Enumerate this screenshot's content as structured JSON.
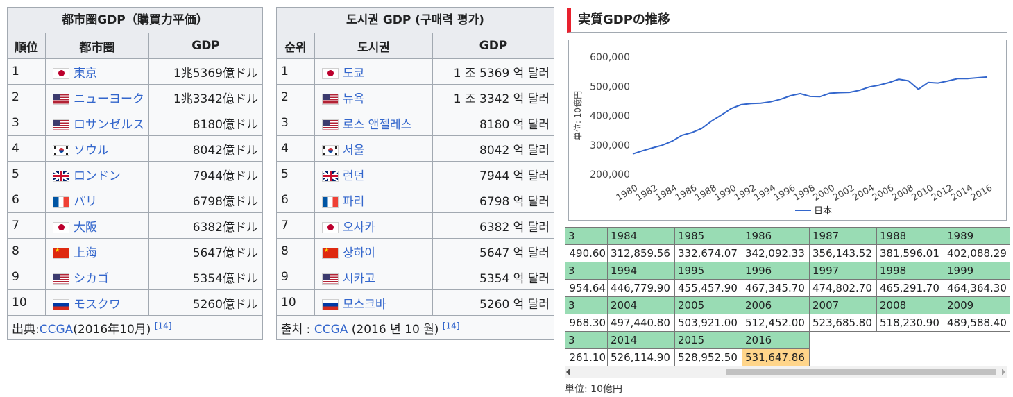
{
  "jp_table": {
    "caption": "都市圏GDP（購買力平価）",
    "headers": [
      "順位",
      "都市圏",
      "GDP"
    ],
    "rows": [
      {
        "rank": "1",
        "flag": "jp",
        "city": "東京",
        "gdp": "1兆5369億ドル"
      },
      {
        "rank": "2",
        "flag": "us",
        "city": "ニューヨーク",
        "gdp": "1兆3342億ドル"
      },
      {
        "rank": "3",
        "flag": "us",
        "city": "ロサンゼルス",
        "gdp": "8180億ドル"
      },
      {
        "rank": "4",
        "flag": "kr",
        "city": "ソウル",
        "gdp": "8042億ドル"
      },
      {
        "rank": "5",
        "flag": "gb",
        "city": "ロンドン",
        "gdp": "7944億ドル"
      },
      {
        "rank": "6",
        "flag": "fr",
        "city": "パリ",
        "gdp": "6798億ドル"
      },
      {
        "rank": "7",
        "flag": "jp",
        "city": "大阪",
        "gdp": "6382億ドル"
      },
      {
        "rank": "8",
        "flag": "cn",
        "city": "上海",
        "gdp": "5647億ドル"
      },
      {
        "rank": "9",
        "flag": "us",
        "city": "シカゴ",
        "gdp": "5354億ドル"
      },
      {
        "rank": "10",
        "flag": "ru",
        "city": "モスクワ",
        "gdp": "5260億ドル"
      }
    ],
    "footer_prefix": "出典:",
    "footer_link": "CCGA",
    "footer_suffix": "(2016年10月) ",
    "footer_ref": "[14]"
  },
  "kr_table": {
    "caption": "도시권 GDP (구매력 평가)",
    "headers": [
      "순위",
      "도시권",
      "GDP"
    ],
    "rows": [
      {
        "rank": "1",
        "flag": "jp",
        "city": "도쿄",
        "gdp": "1 조 5369 억 달러"
      },
      {
        "rank": "2",
        "flag": "us",
        "city": "뉴욕",
        "gdp": "1 조 3342 억 달러"
      },
      {
        "rank": "3",
        "flag": "us",
        "city": "로스 앤젤레스",
        "gdp": "8180 억 달러"
      },
      {
        "rank": "4",
        "flag": "kr",
        "city": "서울",
        "gdp": "8042 억 달러"
      },
      {
        "rank": "5",
        "flag": "gb",
        "city": "런던",
        "gdp": "7944 억 달러"
      },
      {
        "rank": "6",
        "flag": "fr",
        "city": "파리",
        "gdp": "6798 억 달러"
      },
      {
        "rank": "7",
        "flag": "jp",
        "city": "오사카",
        "gdp": "6382 억 달러"
      },
      {
        "rank": "8",
        "flag": "cn",
        "city": "상하이",
        "gdp": "5647 억 달러"
      },
      {
        "rank": "9",
        "flag": "us",
        "city": "시카고",
        "gdp": "5354 억 달러"
      },
      {
        "rank": "10",
        "flag": "ru",
        "city": "모스크바",
        "gdp": "5260 억 달러"
      }
    ],
    "footer_prefix": "출처 : ",
    "footer_link": "CCGA",
    "footer_suffix": " (2016 년 10 월) ",
    "footer_ref": "[14]"
  },
  "section": {
    "title": "実質GDPの推移",
    "unit_note": "単位: 10億円"
  },
  "data_grid": {
    "rows": [
      {
        "years": [
          "3",
          "1984",
          "1985",
          "1986",
          "1987",
          "1988",
          "1989"
        ],
        "values": [
          "490.60",
          "312,859.56",
          "332,674.07",
          "342,092.33",
          "356,143.52",
          "381,596.01",
          "402,088.29"
        ]
      },
      {
        "years": [
          "3",
          "1994",
          "1995",
          "1996",
          "1997",
          "1998",
          "1999"
        ],
        "values": [
          "954.64",
          "446,779.90",
          "455,457.90",
          "467,345.70",
          "474,802.70",
          "465,291.70",
          "464,364.30"
        ]
      },
      {
        "years": [
          "3",
          "2004",
          "2005",
          "2006",
          "2007",
          "2008",
          "2009"
        ],
        "values": [
          "968.30",
          "497,440.80",
          "503,921.00",
          "512,452.00",
          "523,685.80",
          "518,230.90",
          "489,588.40"
        ]
      },
      {
        "years": [
          "3",
          "2014",
          "2015",
          "2016"
        ],
        "values": [
          "261.10",
          "526,114.90",
          "528,952.50",
          "531,647.86"
        ]
      }
    ]
  },
  "chart_data": {
    "type": "line",
    "title": "",
    "xlabel": "",
    "ylabel": "単位: 10億円",
    "x_ticks": [
      "1980",
      "1982",
      "1984",
      "1986",
      "1988",
      "1990",
      "1992",
      "1994",
      "1996",
      "1998",
      "2000",
      "2002",
      "2004",
      "2006",
      "2008",
      "2010",
      "2012",
      "2014",
      "2016"
    ],
    "y_ticks": [
      "200,000",
      "300,000",
      "400,000",
      "500,000",
      "600,000"
    ],
    "ylim": [
      200000,
      600000
    ],
    "xlim": [
      1980,
      2016
    ],
    "grid": false,
    "legend_position": "bottom",
    "series": [
      {
        "name": "日本",
        "color": "#3366cc",
        "x": [
          1980,
          1981,
          1982,
          1983,
          1984,
          1985,
          1986,
          1987,
          1988,
          1989,
          1990,
          1991,
          1992,
          1993,
          1994,
          1995,
          1996,
          1997,
          1998,
          1999,
          2000,
          2001,
          2002,
          2003,
          2004,
          2005,
          2006,
          2007,
          2008,
          2009,
          2010,
          2011,
          2012,
          2013,
          2014,
          2015,
          2016
        ],
        "y": [
          269000,
          280000,
          290000,
          299000,
          312859.56,
          332674.07,
          342092.33,
          356143.52,
          381596.01,
          402088.29,
          424000,
          437000,
          441000,
          442000,
          446779.9,
          455457.9,
          467345.7,
          474802.7,
          465291.7,
          464364.3,
          476000,
          478000,
          479000,
          486000,
          497440.8,
          503921.0,
          512452.0,
          523685.8,
          518230.9,
          489588.4,
          513000,
          511000,
          518000,
          526000,
          526114.9,
          528952.5,
          531647.86
        ]
      }
    ]
  }
}
